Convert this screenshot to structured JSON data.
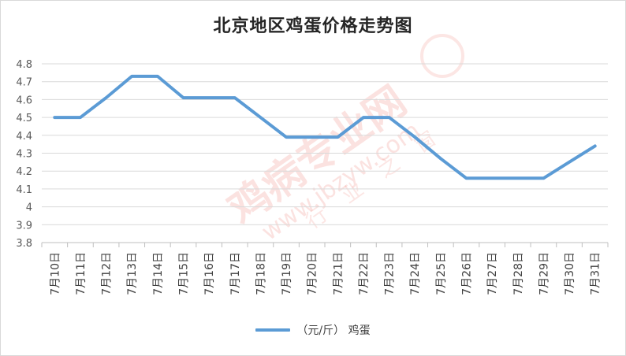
{
  "chart_data": {
    "type": "line",
    "title": "北京地区鸡蛋价格走势图",
    "categories": [
      "7月10日",
      "7月11日",
      "7月12日",
      "7月13日",
      "7月14日",
      "7月15日",
      "7月16日",
      "7月17日",
      "7月18日",
      "7月19日",
      "7月20日",
      "7月21日",
      "7月22日",
      "7月23日",
      "7月24日",
      "7月25日",
      "7月26日",
      "7月27日",
      "7月28日",
      "7月29日",
      "7月30日",
      "7月31日"
    ],
    "series": [
      {
        "name": "（元/斤） 鸡蛋",
        "values": [
          4.5,
          4.5,
          4.61,
          4.73,
          4.73,
          4.61,
          4.61,
          4.61,
          4.5,
          4.39,
          4.39,
          4.39,
          4.5,
          4.5,
          4.39,
          4.27,
          4.16,
          4.16,
          4.16,
          4.16,
          4.25,
          4.34
        ],
        "color": "#5b9bd5"
      }
    ],
    "ylim": [
      3.8,
      4.8
    ],
    "yticks": [
      "3.8",
      "3.9",
      "4",
      "4.1",
      "4.2",
      "4.3",
      "4.4",
      "4.5",
      "4.6",
      "4.7",
      "4.8"
    ],
    "grid": true,
    "legend": "bottom"
  },
  "watermark": {
    "text_main": "鸡病专业网",
    "text_url": "www.jbzyw.com",
    "text_slogan": "行业之窗",
    "color": "#e84c3d"
  }
}
